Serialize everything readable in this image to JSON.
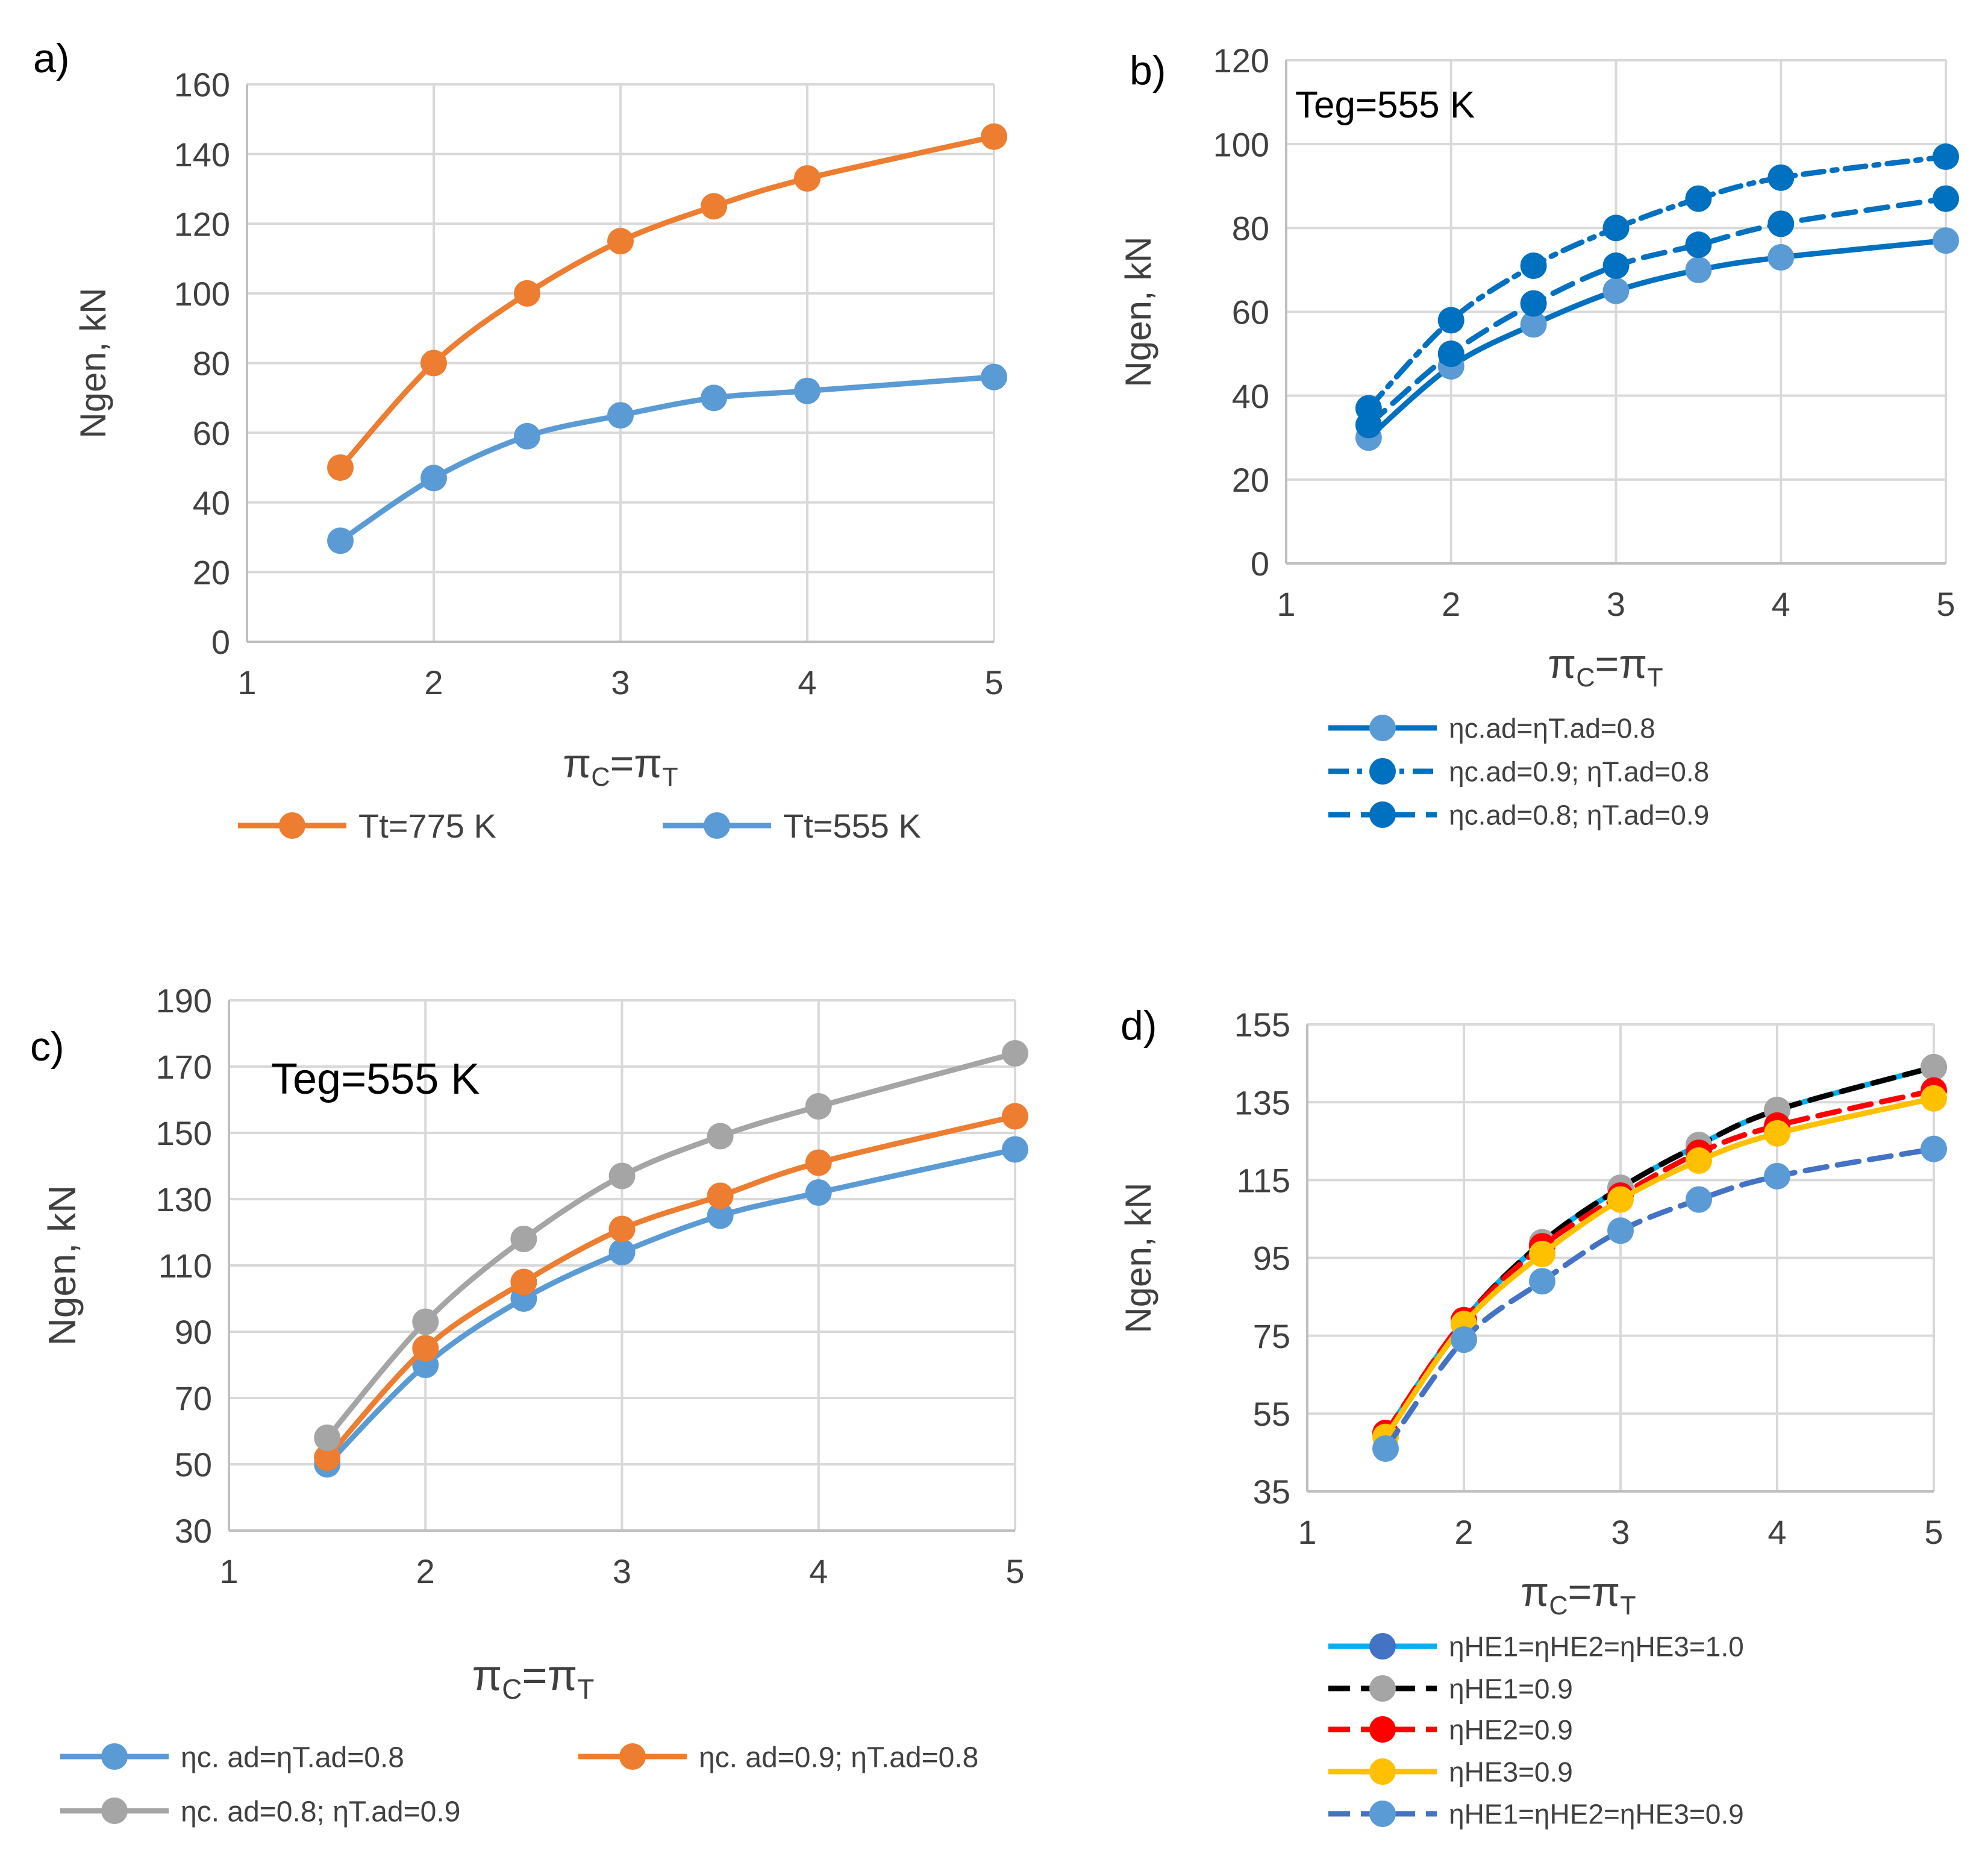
{
  "chart_data": [
    {
      "panel_label": "a)",
      "type": "line",
      "annotation": "",
      "xlabel_main": "π",
      "xlabel_sub1": "C",
      "xlabel_eq": "=π",
      "xlabel_sub2": "T",
      "ylabel": "Ngen, kN",
      "xlim": [
        1,
        5
      ],
      "ylim": [
        0,
        160
      ],
      "xticks": [
        1,
        2,
        3,
        4,
        5
      ],
      "yticks": [
        0,
        20,
        40,
        60,
        80,
        100,
        120,
        140,
        160
      ],
      "x": [
        1.5,
        2,
        2.5,
        3,
        3.5,
        4,
        5
      ],
      "series": [
        {
          "name": "Tt=775 K",
          "values": [
            50,
            80,
            100,
            115,
            125,
            133,
            145
          ],
          "color": "#ED7D31",
          "dash": "solid"
        },
        {
          "name": "Tt=555 K",
          "values": [
            29,
            47,
            59,
            65,
            70,
            72,
            76
          ],
          "color": "#5B9BD5",
          "dash": "solid"
        }
      ]
    },
    {
      "panel_label": "b)",
      "type": "line",
      "annotation": "Teg=555 K",
      "xlabel_main": "π",
      "xlabel_sub1": "C",
      "xlabel_eq": "=π",
      "xlabel_sub2": "T",
      "ylabel": "Ngen,  kN",
      "xlim": [
        1,
        5
      ],
      "ylim": [
        0,
        120
      ],
      "xticks": [
        1,
        2,
        3,
        4,
        5
      ],
      "yticks": [
        0,
        20,
        40,
        60,
        80,
        100,
        120
      ],
      "x": [
        1.5,
        2,
        2.5,
        3,
        3.5,
        4,
        5
      ],
      "series": [
        {
          "name": "ηc.ad=ηT.ad=0.8",
          "values": [
            30,
            47,
            57,
            65,
            70,
            73,
            77
          ],
          "color": "#0070C0",
          "marker": "#5B9BD5",
          "dash": "solid"
        },
        {
          "name": "ηc.ad=0.9; ηT.ad=0.8",
          "values": [
            37,
            58,
            71,
            80,
            87,
            92,
            97
          ],
          "color": "#0070C0",
          "marker": "#0070C0",
          "dash": "dashdot"
        },
        {
          "name": "ηc.ad=0.8; ηT.ad=0.9",
          "values": [
            33,
            50,
            62,
            71,
            76,
            81,
            87
          ],
          "color": "#0070C0",
          "marker": "#0070C0",
          "dash": "dash"
        }
      ]
    },
    {
      "panel_label": "c)",
      "type": "line",
      "annotation": "Teg=555 K",
      "xlabel_main": "π",
      "xlabel_sub1": "C",
      "xlabel_eq": "=π",
      "xlabel_sub2": "T",
      "ylabel": "Ngen, kN",
      "xlim": [
        1,
        5
      ],
      "ylim": [
        30,
        190
      ],
      "xticks": [
        1,
        2,
        3,
        4,
        5
      ],
      "yticks": [
        30,
        50,
        70,
        90,
        110,
        130,
        150,
        170,
        190
      ],
      "x": [
        1.5,
        2,
        2.5,
        3,
        3.5,
        4,
        5
      ],
      "series": [
        {
          "name": "ηc. ad=ηT.ad=0.8",
          "values": [
            50,
            80,
            100,
            114,
            125,
            132,
            145
          ],
          "color": "#5B9BD5",
          "dash": "solid"
        },
        {
          "name": "ηc. ad=0.9; ηT.ad=0.8",
          "values": [
            52,
            85,
            105,
            121,
            131,
            141,
            155
          ],
          "color": "#ED7D31",
          "dash": "solid"
        },
        {
          "name": "ηc. ad=0.8; ηT.ad=0.9",
          "values": [
            58,
            93,
            118,
            137,
            149,
            158,
            174
          ],
          "color": "#A5A5A5",
          "dash": "solid"
        }
      ]
    },
    {
      "panel_label": "d)",
      "type": "line",
      "annotation": "",
      "xlabel_main": "π",
      "xlabel_sub1": "C",
      "xlabel_eq": "=π",
      "xlabel_sub2": "T",
      "ylabel": "Ngen, kN",
      "xlim": [
        1,
        5
      ],
      "ylim": [
        35,
        155
      ],
      "xticks": [
        1,
        2,
        3,
        4,
        5
      ],
      "yticks": [
        35,
        55,
        75,
        95,
        115,
        135,
        155
      ],
      "x": [
        1.5,
        2,
        2.5,
        3,
        3.5,
        4,
        5
      ],
      "series": [
        {
          "name": "ηHE1=ηHE2=ηHE3=1.0",
          "values": [
            50,
            79,
            99,
            113,
            124,
            133,
            144
          ],
          "color": "#00B0F0",
          "marker": "#4472C4",
          "dash": "solid"
        },
        {
          "name": "ηHE1=0.9",
          "values": [
            50,
            79,
            99,
            113,
            124,
            133,
            144
          ],
          "color": "#000000",
          "marker": "#A5A5A5",
          "dash": "dash"
        },
        {
          "name": "ηHE2=0.9",
          "values": [
            50,
            79,
            98,
            111,
            122,
            129,
            138
          ],
          "color": "#FF0000",
          "marker": "#FF0000",
          "dash": "dash"
        },
        {
          "name": "ηHE3=0.9",
          "values": [
            49,
            78,
            96,
            110,
            120,
            127,
            136
          ],
          "color": "#FFC000",
          "marker": "#FFC000",
          "dash": "solid"
        },
        {
          "name": "ηHE1=ηHE2=ηHE3=0.9",
          "values": [
            46,
            74,
            89,
            102,
            110,
            116,
            123
          ],
          "color": "#4472C4",
          "marker": "#5B9BD5",
          "dash": "dash"
        }
      ]
    }
  ]
}
